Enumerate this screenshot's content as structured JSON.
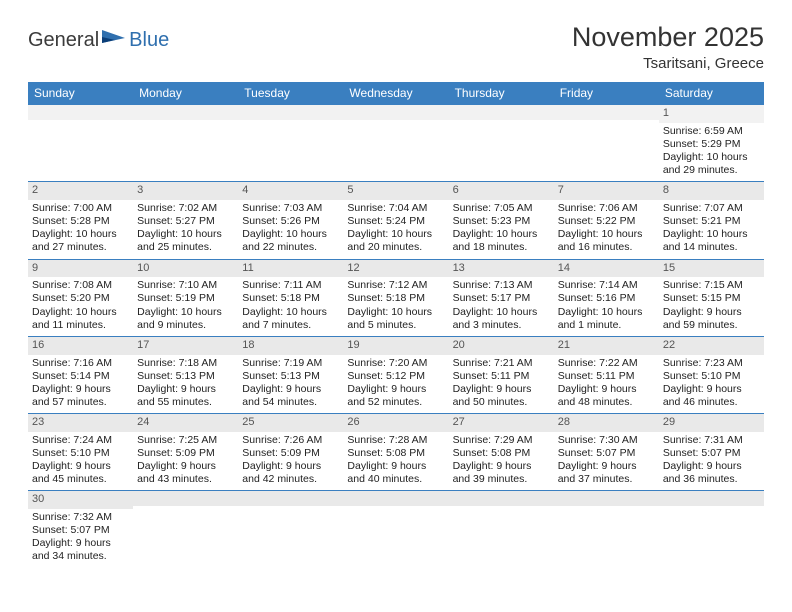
{
  "brand": {
    "text1": "General",
    "text2": "Blue"
  },
  "header": {
    "title": "November 2025",
    "subtitle": "Tsaritsani, Greece"
  },
  "dayHeaders": [
    "Sunday",
    "Monday",
    "Tuesday",
    "Wednesday",
    "Thursday",
    "Friday",
    "Saturday"
  ],
  "colors": {
    "header_bg": "#3a7fc0",
    "header_fg": "#ffffff",
    "daynum_bg": "#e9e9e9",
    "border": "#3a7fc0"
  },
  "weeks": [
    [
      {
        "n": "",
        "sr": "",
        "ss": "",
        "dl": ""
      },
      {
        "n": "",
        "sr": "",
        "ss": "",
        "dl": ""
      },
      {
        "n": "",
        "sr": "",
        "ss": "",
        "dl": ""
      },
      {
        "n": "",
        "sr": "",
        "ss": "",
        "dl": ""
      },
      {
        "n": "",
        "sr": "",
        "ss": "",
        "dl": ""
      },
      {
        "n": "",
        "sr": "",
        "ss": "",
        "dl": ""
      },
      {
        "n": "1",
        "sr": "Sunrise: 6:59 AM",
        "ss": "Sunset: 5:29 PM",
        "dl": "Daylight: 10 hours and 29 minutes."
      }
    ],
    [
      {
        "n": "2",
        "sr": "Sunrise: 7:00 AM",
        "ss": "Sunset: 5:28 PM",
        "dl": "Daylight: 10 hours and 27 minutes."
      },
      {
        "n": "3",
        "sr": "Sunrise: 7:02 AM",
        "ss": "Sunset: 5:27 PM",
        "dl": "Daylight: 10 hours and 25 minutes."
      },
      {
        "n": "4",
        "sr": "Sunrise: 7:03 AM",
        "ss": "Sunset: 5:26 PM",
        "dl": "Daylight: 10 hours and 22 minutes."
      },
      {
        "n": "5",
        "sr": "Sunrise: 7:04 AM",
        "ss": "Sunset: 5:24 PM",
        "dl": "Daylight: 10 hours and 20 minutes."
      },
      {
        "n": "6",
        "sr": "Sunrise: 7:05 AM",
        "ss": "Sunset: 5:23 PM",
        "dl": "Daylight: 10 hours and 18 minutes."
      },
      {
        "n": "7",
        "sr": "Sunrise: 7:06 AM",
        "ss": "Sunset: 5:22 PM",
        "dl": "Daylight: 10 hours and 16 minutes."
      },
      {
        "n": "8",
        "sr": "Sunrise: 7:07 AM",
        "ss": "Sunset: 5:21 PM",
        "dl": "Daylight: 10 hours and 14 minutes."
      }
    ],
    [
      {
        "n": "9",
        "sr": "Sunrise: 7:08 AM",
        "ss": "Sunset: 5:20 PM",
        "dl": "Daylight: 10 hours and 11 minutes."
      },
      {
        "n": "10",
        "sr": "Sunrise: 7:10 AM",
        "ss": "Sunset: 5:19 PM",
        "dl": "Daylight: 10 hours and 9 minutes."
      },
      {
        "n": "11",
        "sr": "Sunrise: 7:11 AM",
        "ss": "Sunset: 5:18 PM",
        "dl": "Daylight: 10 hours and 7 minutes."
      },
      {
        "n": "12",
        "sr": "Sunrise: 7:12 AM",
        "ss": "Sunset: 5:18 PM",
        "dl": "Daylight: 10 hours and 5 minutes."
      },
      {
        "n": "13",
        "sr": "Sunrise: 7:13 AM",
        "ss": "Sunset: 5:17 PM",
        "dl": "Daylight: 10 hours and 3 minutes."
      },
      {
        "n": "14",
        "sr": "Sunrise: 7:14 AM",
        "ss": "Sunset: 5:16 PM",
        "dl": "Daylight: 10 hours and 1 minute."
      },
      {
        "n": "15",
        "sr": "Sunrise: 7:15 AM",
        "ss": "Sunset: 5:15 PM",
        "dl": "Daylight: 9 hours and 59 minutes."
      }
    ],
    [
      {
        "n": "16",
        "sr": "Sunrise: 7:16 AM",
        "ss": "Sunset: 5:14 PM",
        "dl": "Daylight: 9 hours and 57 minutes."
      },
      {
        "n": "17",
        "sr": "Sunrise: 7:18 AM",
        "ss": "Sunset: 5:13 PM",
        "dl": "Daylight: 9 hours and 55 minutes."
      },
      {
        "n": "18",
        "sr": "Sunrise: 7:19 AM",
        "ss": "Sunset: 5:13 PM",
        "dl": "Daylight: 9 hours and 54 minutes."
      },
      {
        "n": "19",
        "sr": "Sunrise: 7:20 AM",
        "ss": "Sunset: 5:12 PM",
        "dl": "Daylight: 9 hours and 52 minutes."
      },
      {
        "n": "20",
        "sr": "Sunrise: 7:21 AM",
        "ss": "Sunset: 5:11 PM",
        "dl": "Daylight: 9 hours and 50 minutes."
      },
      {
        "n": "21",
        "sr": "Sunrise: 7:22 AM",
        "ss": "Sunset: 5:11 PM",
        "dl": "Daylight: 9 hours and 48 minutes."
      },
      {
        "n": "22",
        "sr": "Sunrise: 7:23 AM",
        "ss": "Sunset: 5:10 PM",
        "dl": "Daylight: 9 hours and 46 minutes."
      }
    ],
    [
      {
        "n": "23",
        "sr": "Sunrise: 7:24 AM",
        "ss": "Sunset: 5:10 PM",
        "dl": "Daylight: 9 hours and 45 minutes."
      },
      {
        "n": "24",
        "sr": "Sunrise: 7:25 AM",
        "ss": "Sunset: 5:09 PM",
        "dl": "Daylight: 9 hours and 43 minutes."
      },
      {
        "n": "25",
        "sr": "Sunrise: 7:26 AM",
        "ss": "Sunset: 5:09 PM",
        "dl": "Daylight: 9 hours and 42 minutes."
      },
      {
        "n": "26",
        "sr": "Sunrise: 7:28 AM",
        "ss": "Sunset: 5:08 PM",
        "dl": "Daylight: 9 hours and 40 minutes."
      },
      {
        "n": "27",
        "sr": "Sunrise: 7:29 AM",
        "ss": "Sunset: 5:08 PM",
        "dl": "Daylight: 9 hours and 39 minutes."
      },
      {
        "n": "28",
        "sr": "Sunrise: 7:30 AM",
        "ss": "Sunset: 5:07 PM",
        "dl": "Daylight: 9 hours and 37 minutes."
      },
      {
        "n": "29",
        "sr": "Sunrise: 7:31 AM",
        "ss": "Sunset: 5:07 PM",
        "dl": "Daylight: 9 hours and 36 minutes."
      }
    ],
    [
      {
        "n": "30",
        "sr": "Sunrise: 7:32 AM",
        "ss": "Sunset: 5:07 PM",
        "dl": "Daylight: 9 hours and 34 minutes."
      },
      {
        "n": "",
        "sr": "",
        "ss": "",
        "dl": ""
      },
      {
        "n": "",
        "sr": "",
        "ss": "",
        "dl": ""
      },
      {
        "n": "",
        "sr": "",
        "ss": "",
        "dl": ""
      },
      {
        "n": "",
        "sr": "",
        "ss": "",
        "dl": ""
      },
      {
        "n": "",
        "sr": "",
        "ss": "",
        "dl": ""
      },
      {
        "n": "",
        "sr": "",
        "ss": "",
        "dl": ""
      }
    ]
  ]
}
